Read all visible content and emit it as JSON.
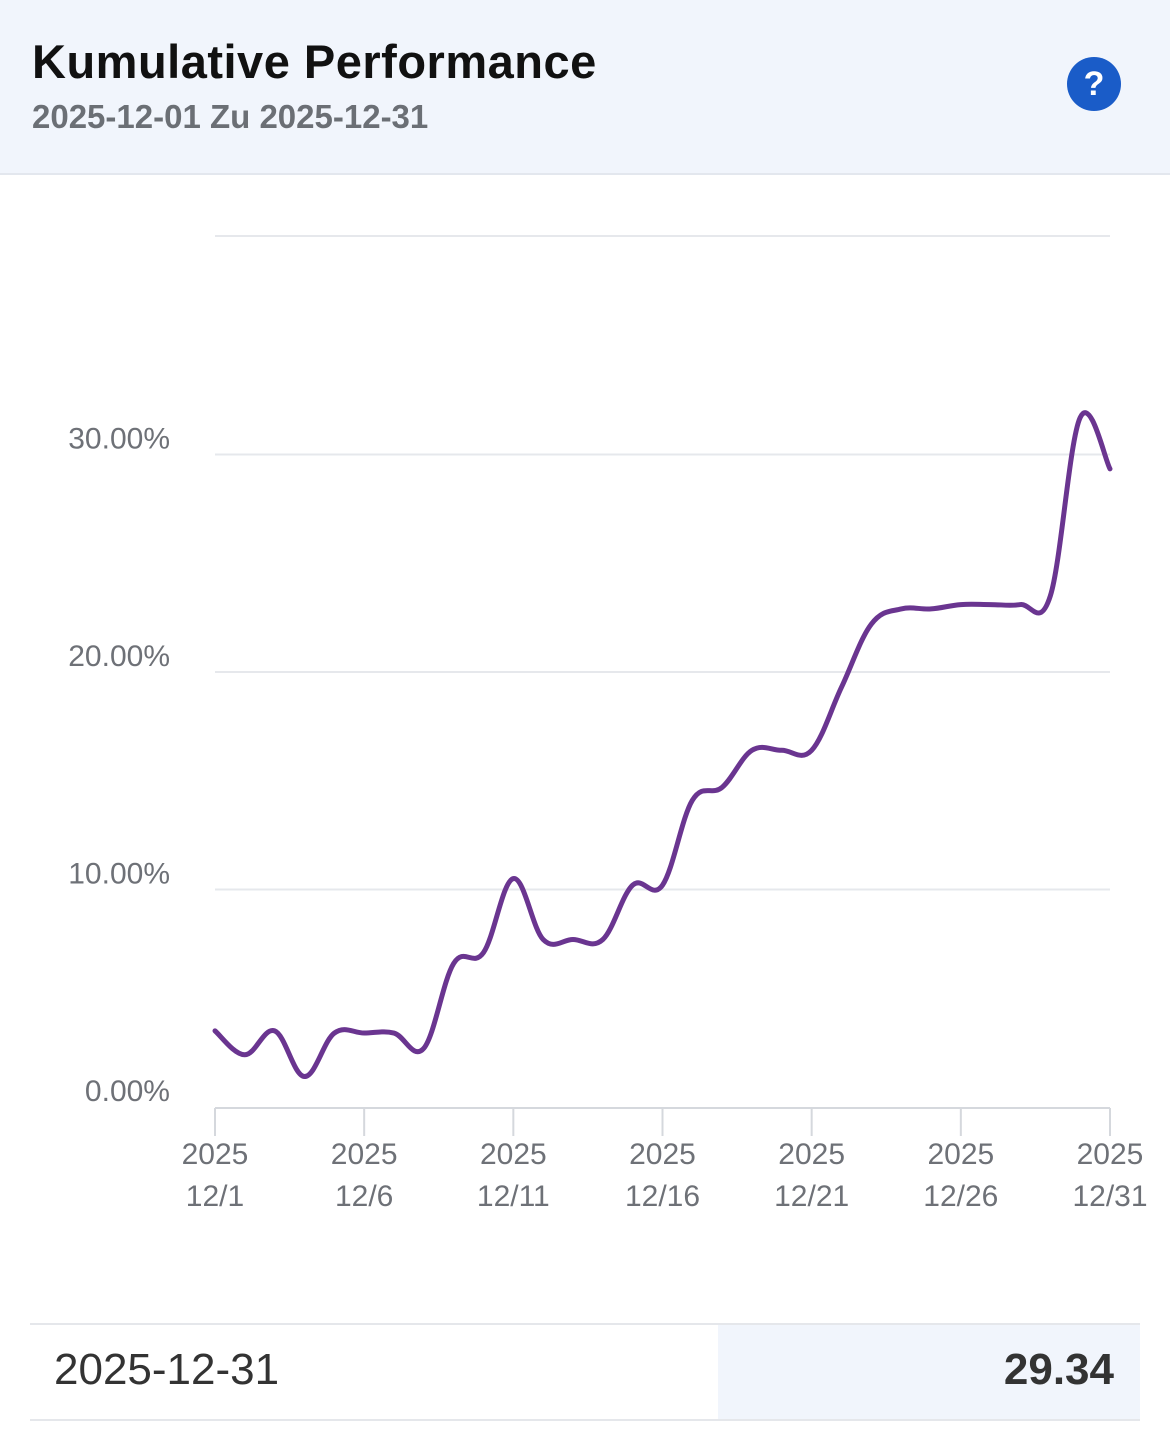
{
  "header": {
    "title": "Kumulative Performance",
    "subtitle": "2025-12-01 Zu 2025-12-31",
    "help_label": "?"
  },
  "chart_data": {
    "type": "line",
    "title": "Kumulative Performance",
    "ylim": [
      0,
      40
    ],
    "yticks": [
      0,
      10,
      20,
      30
    ],
    "ytick_labels": [
      "0.00%",
      "10.00%",
      "20.00%",
      "30.00%"
    ],
    "xtick_labels": [
      [
        "2025",
        "12/1"
      ],
      [
        "2025",
        "12/6"
      ],
      [
        "2025",
        "12/11"
      ],
      [
        "2025",
        "12/16"
      ],
      [
        "2025",
        "12/21"
      ],
      [
        "2025",
        "12/26"
      ],
      [
        "2025",
        "12/31"
      ]
    ],
    "grid": true,
    "line_color": "#6a3590",
    "series": [
      {
        "x": [
          "2025-12-01",
          "2025-12-02",
          "2025-12-03",
          "2025-12-04",
          "2025-12-05",
          "2025-12-06",
          "2025-12-07",
          "2025-12-08",
          "2025-12-09",
          "2025-12-10",
          "2025-12-11",
          "2025-12-12",
          "2025-12-13",
          "2025-12-14",
          "2025-12-15",
          "2025-12-16",
          "2025-12-17",
          "2025-12-18",
          "2025-12-19",
          "2025-12-20",
          "2025-12-21",
          "2025-12-22",
          "2025-12-23",
          "2025-12-24",
          "2025-12-25",
          "2025-12-26",
          "2025-12-27",
          "2025-12-28",
          "2025-12-29",
          "2025-12-30",
          "2025-12-31"
        ],
        "values": [
          3.5,
          2.4,
          3.5,
          1.4,
          3.4,
          3.4,
          3.4,
          2.7,
          6.6,
          7.1,
          10.5,
          7.7,
          7.7,
          7.7,
          10.2,
          10.2,
          14.1,
          14.7,
          16.4,
          16.4,
          16.4,
          19.3,
          22.2,
          22.9,
          22.9,
          23.1,
          23.1,
          23.1,
          23.5,
          31.7,
          29.34
        ]
      }
    ]
  },
  "summary": {
    "date": "2025-12-31",
    "value": "29.34"
  }
}
